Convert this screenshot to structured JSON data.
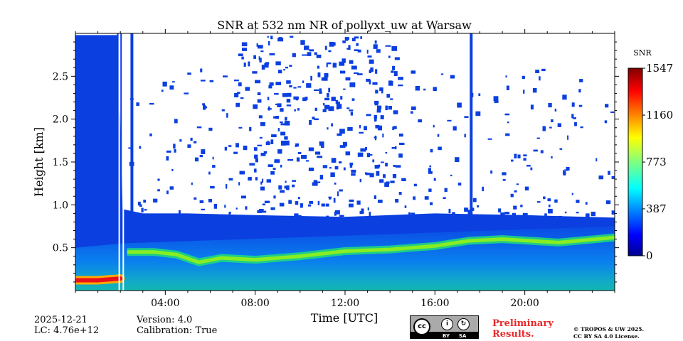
{
  "chart_data": {
    "type": "heatmap",
    "title": "SNR at 532 nm NR of pollyxt_uw at Warsaw",
    "xlabel": "Time [UTC]",
    "ylabel": "Height [km]",
    "xlim": [
      0,
      24
    ],
    "ylim": [
      0,
      3.0
    ],
    "x_ticks": [
      {
        "value": 4,
        "label": "04:00"
      },
      {
        "value": 8,
        "label": "08:00"
      },
      {
        "value": 12,
        "label": "12:00"
      },
      {
        "value": 16,
        "label": "16:00"
      },
      {
        "value": 20,
        "label": "20:00"
      }
    ],
    "y_ticks": [
      {
        "value": 0.5,
        "label": "0.5"
      },
      {
        "value": 1.0,
        "label": "1.0"
      },
      {
        "value": 1.5,
        "label": "1.5"
      },
      {
        "value": 2.0,
        "label": "2.0"
      },
      {
        "value": 2.5,
        "label": "2.5"
      }
    ],
    "colorbar": {
      "label": "SNR",
      "range": [
        0,
        1547
      ],
      "ticks": [
        {
          "value": 0,
          "label": "0"
        },
        {
          "value": 387,
          "label": "387"
        },
        {
          "value": 773,
          "label": "773"
        },
        {
          "value": 1160,
          "label": "1160"
        },
        {
          "value": 1547,
          "label": "1547"
        }
      ],
      "colormap": "jet"
    },
    "layer_top_height_km": [
      [
        0,
        2.98
      ],
      [
        1.9,
        2.98
      ],
      [
        2.1,
        0.95
      ],
      [
        3,
        0.9
      ],
      [
        5,
        0.9
      ],
      [
        8,
        0.88
      ],
      [
        12,
        0.86
      ],
      [
        14,
        0.88
      ],
      [
        16,
        0.9
      ],
      [
        20,
        0.88
      ],
      [
        24,
        0.85
      ]
    ],
    "peak_snr_band": [
      [
        0,
        0.12,
        1450
      ],
      [
        1.0,
        0.12,
        1480
      ],
      [
        2.0,
        0.14,
        1300
      ],
      [
        2.3,
        0.45,
        700
      ],
      [
        3.5,
        0.45,
        720
      ],
      [
        4.5,
        0.42,
        700
      ],
      [
        5.5,
        0.33,
        680
      ],
      [
        6.5,
        0.38,
        720
      ],
      [
        8,
        0.36,
        760
      ],
      [
        10,
        0.4,
        760
      ],
      [
        12,
        0.46,
        720
      ],
      [
        14,
        0.48,
        700
      ],
      [
        16,
        0.52,
        690
      ],
      [
        17.5,
        0.58,
        650
      ],
      [
        19,
        0.6,
        640
      ],
      [
        21.5,
        0.56,
        630
      ],
      [
        24,
        0.62,
        620
      ]
    ]
  },
  "metadata": {
    "date": "2025-12-21",
    "lc": "LC: 4.76e+12",
    "version": "Version: 4.0",
    "calibration": "Calibration: True"
  },
  "license": {
    "cc_text": "cc",
    "by": "BY",
    "sa": "SA",
    "preliminary_line1": "Preliminary",
    "preliminary_line2": "Results.",
    "copyright_line1": "© TROPOS & UW 2025.",
    "copyright_line2": "CC BY SA 4.0 License."
  },
  "colors": {
    "background_blue": "#0b3fe0",
    "colormap_stops": [
      "#00008f",
      "#0000ff",
      "#0080ff",
      "#00ffff",
      "#80ff80",
      "#ffff00",
      "#ff8000",
      "#ff0000",
      "#800000"
    ]
  }
}
